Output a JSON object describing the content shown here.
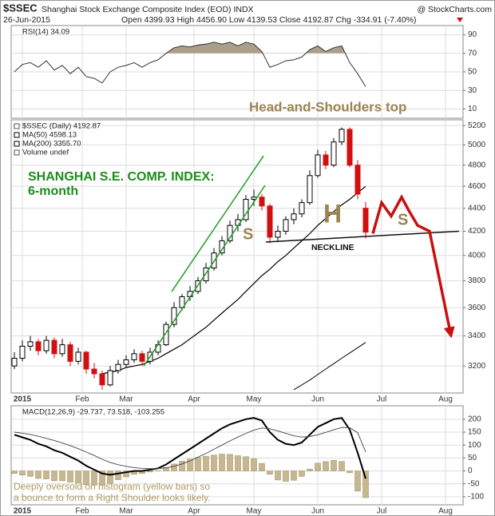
{
  "header": {
    "symbol": "$SSEC",
    "name": "Shanghai Stock Exchange Composite Index (EOD) INDX",
    "date": "26-Jun-2015",
    "quote": "Open 4399.93 High 4456.90 Low 4139.53 Close 4192.87 Chg -334.91 (-7.40%)",
    "source": "@ StockCharts.com"
  },
  "annotations": [
    "SHANGHAI S.E. COMP. INDEX:",
    "6-month",
    "Head-and-Shoulders top",
    "S",
    "H",
    "S",
    "NECKLINE",
    "Deeply oversold on histogram (yellow bars) so",
    "a bounce to form a Right Shoulder looks likely."
  ],
  "chart_data": [
    {
      "type": "line",
      "title": "RSI(14) 34.09",
      "color": "#333333",
      "fill_above": 70,
      "fill_color": "#aaa08a",
      "values": [
        50,
        58,
        60,
        55,
        62,
        52,
        57,
        48,
        55,
        45,
        43,
        38,
        50,
        55,
        57,
        60,
        55,
        60,
        63,
        70,
        76,
        78,
        77,
        79,
        80,
        82,
        80,
        82,
        78,
        82,
        80,
        72,
        55,
        58,
        62,
        63,
        66,
        74,
        78,
        72,
        76,
        78,
        60,
        48,
        34.09
      ],
      "xlim": [
        -0.4,
        56.2
      ],
      "ylim": [
        0,
        100
      ],
      "yticks": [
        10,
        30,
        50,
        70,
        90
      ],
      "grid": true
    },
    {
      "type": "candlestick",
      "name": "$SSEC (Daily) 4192.87",
      "volume_label": "Volume undef",
      "up_color": "#000000",
      "down_color": "#d01010",
      "log": true,
      "ohlc": [
        [
          3200,
          3290,
          3180,
          3250
        ],
        [
          3250,
          3370,
          3230,
          3330
        ],
        [
          3330,
          3400,
          3300,
          3360
        ],
        [
          3360,
          3380,
          3270,
          3300
        ],
        [
          3300,
          3400,
          3280,
          3370
        ],
        [
          3370,
          3390,
          3250,
          3280
        ],
        [
          3280,
          3380,
          3260,
          3340
        ],
        [
          3340,
          3360,
          3200,
          3230
        ],
        [
          3230,
          3320,
          3210,
          3290
        ],
        [
          3290,
          3300,
          3150,
          3180
        ],
        [
          3180,
          3220,
          3120,
          3150
        ],
        [
          3150,
          3170,
          3050,
          3080
        ],
        [
          3080,
          3200,
          3070,
          3170
        ],
        [
          3170,
          3240,
          3150,
          3210
        ],
        [
          3210,
          3270,
          3190,
          3240
        ],
        [
          3240,
          3310,
          3220,
          3280
        ],
        [
          3280,
          3300,
          3200,
          3230
        ],
        [
          3230,
          3320,
          3210,
          3290
        ],
        [
          3290,
          3370,
          3270,
          3340
        ],
        [
          3340,
          3500,
          3330,
          3480
        ],
        [
          3480,
          3640,
          3460,
          3600
        ],
        [
          3600,
          3700,
          3580,
          3680
        ],
        [
          3680,
          3760,
          3650,
          3720
        ],
        [
          3720,
          3830,
          3700,
          3800
        ],
        [
          3800,
          3940,
          3780,
          3900
        ],
        [
          3900,
          4060,
          3880,
          4020
        ],
        [
          4020,
          4160,
          4000,
          4120
        ],
        [
          4120,
          4290,
          4100,
          4250
        ],
        [
          4250,
          4350,
          4200,
          4300
        ],
        [
          4300,
          4520,
          4280,
          4480
        ],
        [
          4480,
          4570,
          4420,
          4500
        ],
        [
          4500,
          4530,
          4380,
          4420
        ],
        [
          4420,
          4440,
          4100,
          4150
        ],
        [
          4150,
          4250,
          4110,
          4200
        ],
        [
          4200,
          4330,
          4170,
          4300
        ],
        [
          4300,
          4400,
          4260,
          4350
        ],
        [
          4350,
          4480,
          4320,
          4450
        ],
        [
          4450,
          4750,
          4430,
          4700
        ],
        [
          4700,
          4950,
          4680,
          4900
        ],
        [
          4900,
          4940,
          4760,
          4800
        ],
        [
          4800,
          5070,
          4780,
          5030
        ],
        [
          5030,
          5180,
          5000,
          5160
        ],
        [
          5160,
          5180,
          4780,
          4800
        ],
        [
          4800,
          4850,
          4480,
          4527.78
        ],
        [
          4399.93,
          4456.9,
          4139.53,
          4192.87
        ]
      ],
      "series": [
        {
          "name": "MA(50) 4598.13",
          "color": "#000000",
          "values": [
            null,
            null,
            null,
            null,
            null,
            null,
            null,
            null,
            null,
            null,
            null,
            3150,
            3160,
            3170,
            3190,
            3200,
            3210,
            3230,
            3250,
            3280,
            3310,
            3340,
            3380,
            3420,
            3460,
            3510,
            3560,
            3610,
            3660,
            3720,
            3780,
            3840,
            3890,
            3950,
            4000,
            4060,
            4120,
            4180,
            4250,
            4310,
            4370,
            4430,
            4480,
            4540,
            4598.13
          ]
        },
        {
          "name": "MA(200) 3355.70",
          "color": "#000000",
          "values": [
            null,
            null,
            null,
            null,
            null,
            null,
            null,
            null,
            null,
            null,
            null,
            null,
            null,
            null,
            null,
            null,
            null,
            null,
            null,
            null,
            null,
            null,
            null,
            null,
            null,
            null,
            null,
            null,
            null,
            null,
            null,
            null,
            null,
            null,
            null,
            3050,
            3080,
            3110,
            3145,
            3180,
            3215,
            3250,
            3285,
            3320,
            3355.7
          ]
        }
      ],
      "lines": [
        {
          "color": "#22a022",
          "x": [
            19.7,
            31.2
          ],
          "values": [
            3718,
            4890
          ]
        },
        {
          "color": "#22a022",
          "x": [
            16.2,
            31.4
          ],
          "values": [
            3200,
            4608
          ]
        },
        {
          "color": "#111111",
          "x": [
            31.5,
            55.7
          ],
          "values": [
            4110,
            4200
          ]
        },
        {
          "color": "#c81010",
          "x": [
            44.9,
            46,
            47.2,
            48.5,
            49.4,
            50.5,
            52,
            54.7
          ],
          "values": [
            4180,
            4450,
            4330,
            4500,
            4380,
            4250,
            4200,
            3400
          ],
          "arrow": true
        }
      ],
      "xlim": [
        -0.4,
        56.2
      ],
      "ylim": [
        3030,
        5260
      ],
      "xticks": [
        {
          "value": 1,
          "label": "2015"
        },
        {
          "value": 8.5,
          "label": "Feb"
        },
        {
          "value": 14,
          "label": "Mar"
        },
        {
          "value": 22.5,
          "label": "Apr"
        },
        {
          "value": 30,
          "label": "May"
        },
        {
          "value": 38,
          "label": "Jun"
        },
        {
          "value": 46,
          "label": "Jul"
        },
        {
          "value": 54,
          "label": "Aug"
        }
      ],
      "yticks": [
        3200,
        3400,
        3600,
        3800,
        4000,
        4200,
        4400,
        4600,
        4800,
        5000,
        5200
      ],
      "grid": true
    },
    {
      "type": "macd",
      "title": "MACD(12,26,9) -29.737, 73.518, -103.255",
      "series": [
        {
          "color": "#000000",
          "values": [
            140,
            130,
            120,
            105,
            95,
            80,
            70,
            55,
            40,
            20,
            5,
            -10,
            -15,
            -10,
            -5,
            0,
            0,
            5,
            10,
            25,
            45,
            65,
            85,
            105,
            125,
            145,
            165,
            180,
            190,
            200,
            205,
            195,
            150,
            120,
            105,
            100,
            110,
            140,
            170,
            185,
            200,
            205,
            160,
            70,
            -29.737
          ]
        },
        {
          "color": "#444444",
          "values": [
            150,
            146,
            141,
            134,
            126,
            118,
            108,
            98,
            86,
            73,
            60,
            45,
            33,
            24,
            18,
            13,
            10,
            9,
            9,
            12,
            18,
            27,
            39,
            53,
            68,
            84,
            100,
            116,
            131,
            145,
            158,
            166,
            163,
            155,
            145,
            136,
            131,
            133,
            140,
            149,
            159,
            168,
            167,
            148,
            73.518
          ]
        }
      ],
      "histogram": {
        "color": "#c8b78e",
        "values": [
          -10,
          -16,
          -21,
          -29,
          -31,
          -38,
          -38,
          -43,
          -46,
          -53,
          -55,
          -55,
          -48,
          -34,
          -23,
          -13,
          -10,
          -4,
          1,
          13,
          27,
          38,
          46,
          52,
          57,
          61,
          65,
          64,
          59,
          55,
          47,
          29,
          -13,
          -35,
          -40,
          -36,
          -21,
          7,
          30,
          36,
          41,
          37,
          -7,
          -78,
          -103.255
        ]
      },
      "xlim": [
        -0.4,
        56.2
      ],
      "ylim": [
        -131,
        252
      ],
      "yticks": [
        -100,
        -50,
        0,
        50,
        100,
        150,
        200
      ],
      "grid": true
    }
  ]
}
